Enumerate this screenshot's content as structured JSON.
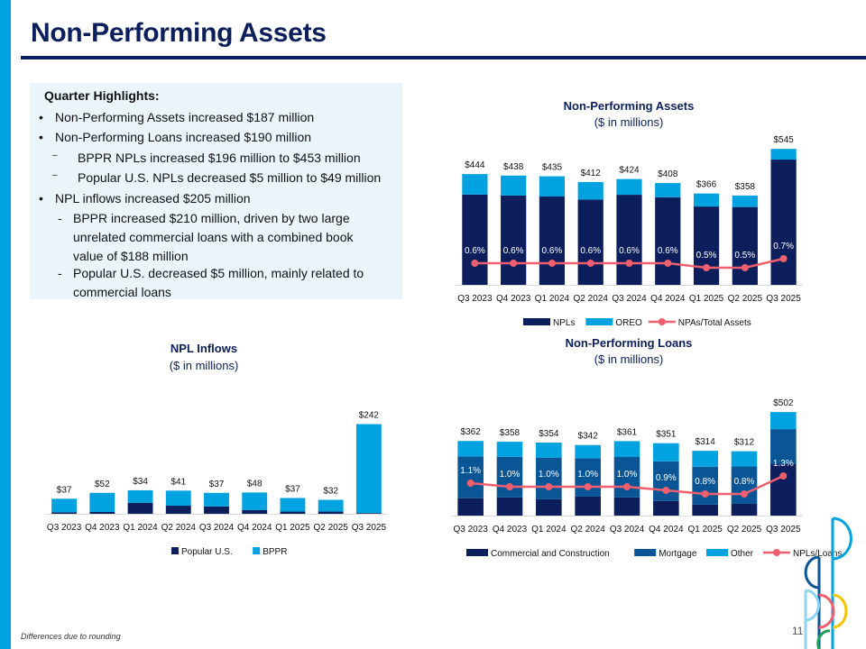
{
  "page": {
    "title": "Non-Performing Assets",
    "footnote": "Differences due to rounding",
    "page_number": "11"
  },
  "highlights": {
    "heading": "Quarter Highlights:",
    "items": [
      {
        "marker": "•",
        "text": "Non-Performing Assets increased $187 million"
      },
      {
        "marker": "•",
        "text": "Non-Performing Loans increased $190 million"
      },
      {
        "marker": "–",
        "text": "BPPR NPLs increased $196 million to $453 million"
      },
      {
        "marker": "–",
        "text": "Popular U.S. NPLs decreased $5 million to $49 million"
      },
      {
        "marker": "•",
        "text": "NPL inflows increased $205 million"
      },
      {
        "marker": "-",
        "text": "BPPR increased $210 million, driven by two large unrelated commercial loans with a combined book value of $188 million"
      },
      {
        "marker": "-",
        "text": "Popular U.S. decreased $5 million, mainly related to commercial loans"
      }
    ]
  },
  "colors": {
    "navy": "#0c1e5b",
    "mid_blue": "#0a5596",
    "light_blue": "#00a3e0",
    "line_red": "#ef5f6e",
    "panel": "#eaf5fb"
  },
  "chart_data": [
    {
      "id": "npa",
      "type": "bar",
      "stacked": true,
      "title": "Non-Performing Assets",
      "subtitle": "($ in millions)",
      "categories": [
        "Q3 2023",
        "Q4 2023",
        "Q1 2024",
        "Q2 2024",
        "Q3 2024",
        "Q4 2024",
        "Q1 2025",
        "Q2 2025",
        "Q3 2025"
      ],
      "series": [
        {
          "name": "NPLs",
          "color": "#0c1e5b",
          "values": [
            362,
            358,
            354,
            342,
            361,
            351,
            314,
            312,
            502
          ]
        },
        {
          "name": "OREO",
          "color": "#00a3e0",
          "values": [
            82,
            80,
            81,
            70,
            63,
            57,
            52,
            46,
            43
          ]
        }
      ],
      "total_labels": [
        "$444",
        "$438",
        "$435",
        "$412",
        "$424",
        "$408",
        "$366",
        "$358",
        "$545"
      ],
      "line": {
        "name": "NPAs/Total Assets",
        "color": "#ef5f6e",
        "values": [
          0.6,
          0.6,
          0.6,
          0.6,
          0.6,
          0.6,
          0.5,
          0.5,
          0.7
        ],
        "labels": [
          "0.6%",
          "0.6%",
          "0.6%",
          "0.6%",
          "0.6%",
          "0.6%",
          "0.5%",
          "0.5%",
          "0.7%"
        ]
      },
      "legend": [
        "NPLs",
        "OREO",
        "NPAs/Total Assets"
      ],
      "legend_position": "bottom",
      "ylim": [
        0,
        560
      ],
      "grid": false
    },
    {
      "id": "inflows",
      "type": "bar",
      "stacked": true,
      "title": "NPL Inflows",
      "subtitle": "($ in millions)",
      "categories": [
        "Q3 2023",
        "Q4 2023",
        "Q1 2024",
        "Q2 2024",
        "Q3 2024",
        "Q4 2024",
        "Q1 2025",
        "Q2 2025",
        "Q3 2025"
      ],
      "series": [
        {
          "name": "Popular U.S.",
          "color": "#0c1e5b",
          "values": [
            4,
            5,
            30,
            22,
            20,
            10,
            6,
            6,
            2
          ]
        },
        {
          "name": "BPPR",
          "color": "#00a3e0",
          "values": [
            37,
            52,
            34,
            41,
            37,
            48,
            37,
            32,
            242
          ]
        }
      ],
      "data_labels": [
        "$37",
        "$52",
        "$34",
        "$41",
        "$37",
        "$48",
        "$37",
        "$32",
        "$242"
      ],
      "legend": [
        "Popular U.S.",
        "BPPR"
      ],
      "legend_position": "bottom",
      "ylim": [
        0,
        260
      ],
      "grid": false
    },
    {
      "id": "npl",
      "type": "bar",
      "stacked": true,
      "title": "Non-Performing Loans",
      "subtitle": "($ in millions)",
      "categories": [
        "Q3 2023",
        "Q4 2023",
        "Q1 2024",
        "Q2 2024",
        "Q3 2024",
        "Q4 2024",
        "Q1 2025",
        "Q2 2025",
        "Q3 2025"
      ],
      "series": [
        {
          "name": "Commercial and Construction",
          "color": "#0c1e5b",
          "values": [
            84,
            88,
            80,
            92,
            88,
            71,
            53,
            57,
            249
          ]
        },
        {
          "name": "Mortgage",
          "color": "#0a5596",
          "values": [
            203,
            197,
            201,
            186,
            196,
            192,
            184,
            181,
            170
          ]
        },
        {
          "name": "Other",
          "color": "#00a3e0",
          "values": [
            75,
            73,
            73,
            64,
            77,
            88,
            77,
            74,
            83
          ]
        }
      ],
      "total_labels": [
        "$362",
        "$358",
        "$354",
        "$342",
        "$361",
        "$351",
        "$314",
        "$312",
        "$502"
      ],
      "line": {
        "name": "NPLs/Loans",
        "color": "#ef5f6e",
        "values": [
          1.1,
          1.0,
          1.0,
          1.0,
          1.0,
          0.9,
          0.8,
          0.8,
          1.3
        ],
        "labels": [
          "1.1%",
          "1.0%",
          "1.0%",
          "1.0%",
          "1.0%",
          "0.9%",
          "0.8%",
          "0.8%",
          "1.3%"
        ]
      },
      "legend": [
        "Commercial and Construction",
        "Mortgage",
        "Other",
        "NPLs/Loans"
      ],
      "legend_position": "bottom",
      "ylim": [
        0,
        520
      ],
      "grid": false
    }
  ]
}
